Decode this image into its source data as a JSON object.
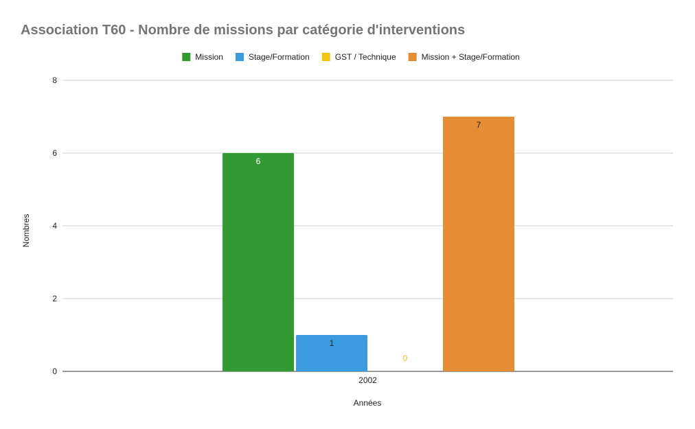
{
  "chart_data": {
    "type": "bar",
    "title": "Association T60 - Nombre de missions par catégorie d'interventions",
    "xlabel": "Années",
    "ylabel": "Nombres",
    "categories": [
      "2002"
    ],
    "ylim": [
      0,
      8
    ],
    "yticks": [
      "0",
      "2",
      "4",
      "6",
      "8"
    ],
    "grid": true,
    "legend_position": "top",
    "series": [
      {
        "name": "Mission",
        "values": [
          6
        ],
        "color": "#339933",
        "label_color": "#ffffff"
      },
      {
        "name": "Stage/Formation",
        "values": [
          1
        ],
        "color": "#3a9ade",
        "label_color": "#222222"
      },
      {
        "name": "GST / Technique",
        "values": [
          0
        ],
        "color": "#f1c40f",
        "label_color": "#e8c020"
      },
      {
        "name": "Mission + Stage/Formation",
        "values": [
          7
        ],
        "color": "#e68c34",
        "label_color": "#222222"
      }
    ]
  }
}
